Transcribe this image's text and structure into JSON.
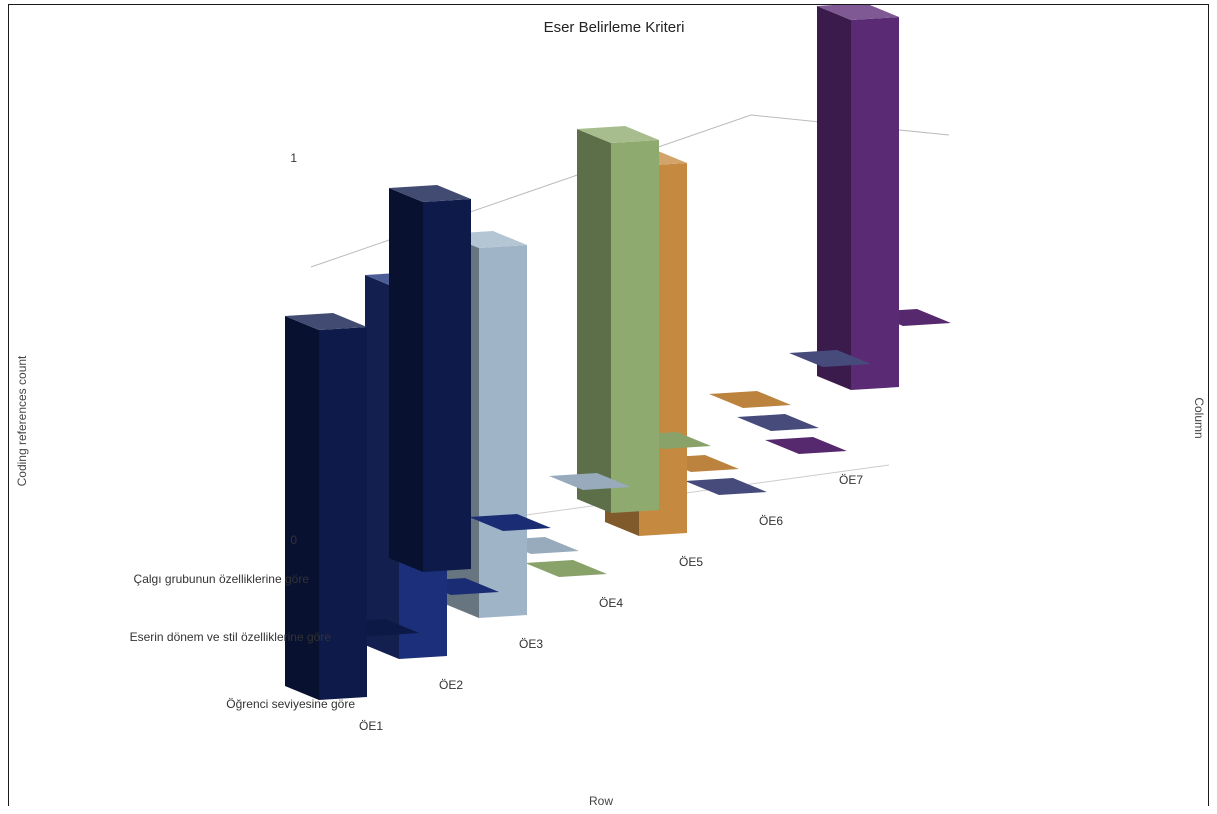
{
  "chart_data": {
    "type": "bar",
    "variant": "3d-column",
    "title": "Eser Belirleme Kriteri",
    "xlabel": "Row",
    "ylabel": "Coding references count",
    "zlabel": "Column",
    "ylim": [
      0,
      1
    ],
    "yticks": [
      "0",
      "1"
    ],
    "categories": [
      "ÖE1",
      "ÖE2",
      "ÖE3",
      "ÖE4",
      "ÖE5",
      "ÖE6",
      "ÖE7"
    ],
    "series": [
      {
        "name": "Çalgı grubunun özelliklerine göre",
        "values": [
          1,
          0,
          0,
          0,
          0,
          0,
          0
        ]
      },
      {
        "name": "Eserin dönem ve stil özelliklerine göre",
        "values": [
          0,
          0,
          0,
          1,
          0,
          0,
          1
        ]
      },
      {
        "name": "Öğrenci seviyesine göre",
        "values": [
          1,
          1,
          1,
          0,
          1,
          0,
          0
        ]
      }
    ],
    "colors": [
      "#0d1a4a",
      "#1b2f7a",
      "#9fb4c6",
      "#8faa6e",
      "#c58a40",
      "#4a4f82",
      "#5a2a74"
    ]
  }
}
